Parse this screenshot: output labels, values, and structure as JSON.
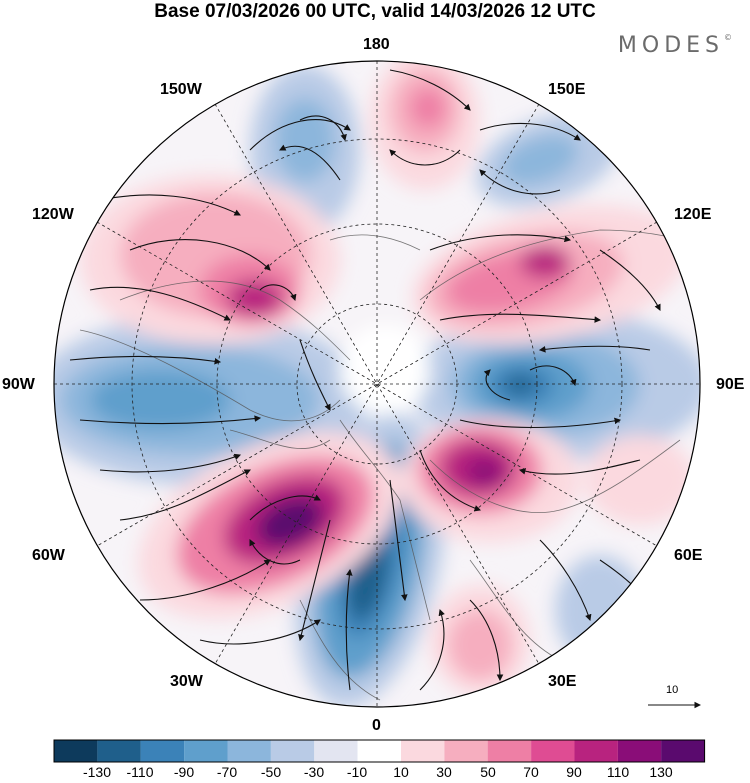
{
  "title": "Base 07/03/2026 00 UTC, valid 14/03/2026 12 UTC",
  "brand": "MODES",
  "brand_mark": "©",
  "longitude_labels": {
    "n180": "180",
    "w150": "150W",
    "e150": "150E",
    "w120": "120W",
    "e120": "120E",
    "w90": "90W",
    "e90": "90E",
    "w60": "60W",
    "e60": "60E",
    "w30": "30W",
    "e30": "30E",
    "s0": "0"
  },
  "reference_vector": "10",
  "colorbar": {
    "labels": [
      "-130",
      "-110",
      "-90",
      "-70",
      "-50",
      "-30",
      "-10",
      "10",
      "30",
      "50",
      "70",
      "90",
      "110",
      "130"
    ],
    "colors": [
      "#0d3a5c",
      "#1f5f8b",
      "#3b82b8",
      "#5f9fcc",
      "#8cb6dc",
      "#b9cbe6",
      "#e3e5f1",
      "#ffffff",
      "#fbd9df",
      "#f6aebf",
      "#ee7fa5",
      "#df4c93",
      "#b8237f",
      "#8a0d78",
      "#5a0a6e"
    ]
  },
  "map_data": {
    "projection": "north polar stereographic",
    "field": "anomaly (shaded) with wind vectors",
    "positive_anomalies": [
      "North Pacific 180",
      "Alaska/W Canada 110W",
      "E Siberia 125E",
      "North Atlantic 55W",
      "Scandinavia/Barents 45E",
      "Europe 25E"
    ],
    "negative_anomalies": [
      "Bering Sea 155W",
      "Kamchatka 150E",
      "Canada 90W",
      "Central Siberia 90E",
      "Greenland/Atlantic 10W"
    ]
  }
}
